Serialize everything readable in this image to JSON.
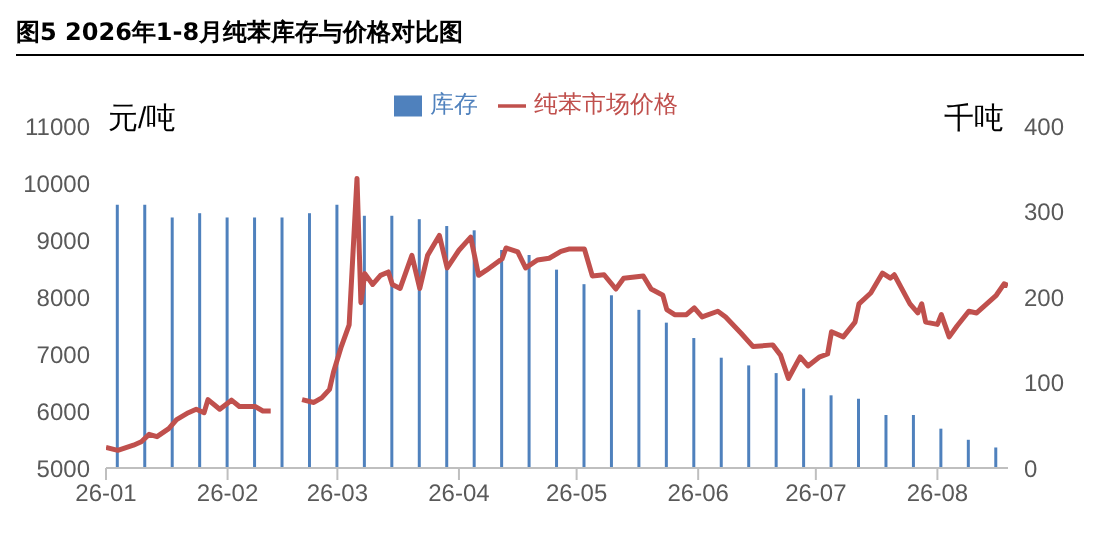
{
  "chart_data": {
    "type": "line",
    "title": "图5 2026年1-8月纯苯库存与价格对比图",
    "ylabel": "元/吨",
    "y2label": "千吨",
    "legend": "top",
    "grid": false,
    "marker": "none",
    "xlim": [
      "2026-01-01",
      "2026-08-19"
    ],
    "xticks": [
      {
        "value": "2026-01",
        "label": "26-01"
      },
      {
        "value": "2026-02",
        "label": "26-02"
      },
      {
        "value": "2026-03",
        "label": "26-03"
      },
      {
        "value": "2026-04",
        "label": "26-04"
      },
      {
        "value": "2026-05",
        "label": "26-05"
      },
      {
        "value": "2026-06",
        "label": "26-06"
      },
      {
        "value": "2026-07",
        "label": "26-07"
      },
      {
        "value": "2026-08",
        "label": "26-08"
      }
    ],
    "ylim": [
      5000,
      11000
    ],
    "yticks": [
      5000,
      6000,
      7000,
      8000,
      9000,
      10000,
      11000
    ],
    "y2lim": [
      0,
      400
    ],
    "y2ticks": [
      0,
      100,
      200,
      300,
      400
    ],
    "series": [
      {
        "name": "库存",
        "type": "bar",
        "axis": "y2",
        "color": "#4f81bd",
        "x": [
          "2026-01-04",
          "2026-01-11",
          "2026-01-18",
          "2026-01-25",
          "2026-02-01",
          "2026-02-08",
          "2026-02-15",
          "2026-02-22",
          "2026-03-01",
          "2026-03-08",
          "2026-03-15",
          "2026-03-22",
          "2026-03-29",
          "2026-04-05",
          "2026-04-12",
          "2026-04-19",
          "2026-04-26",
          "2026-05-03",
          "2026-05-10",
          "2026-05-17",
          "2026-05-24",
          "2026-05-31",
          "2026-06-07",
          "2026-06-14",
          "2026-06-21",
          "2026-06-28",
          "2026-07-05",
          "2026-07-12",
          "2026-07-19",
          "2026-07-26",
          "2026-08-02",
          "2026-08-09",
          "2026-08-16"
        ],
        "values": [
          308,
          308,
          293,
          298,
          293,
          293,
          293,
          298,
          308,
          295,
          295,
          291,
          283,
          278,
          255,
          249,
          232,
          215,
          202,
          185,
          170,
          152,
          129,
          120,
          111,
          93,
          85,
          81,
          62,
          62,
          46,
          33,
          24
        ]
      },
      {
        "name": "纯苯市场价格",
        "color": "#c0504d",
        "line_style": "solid",
        "x": [
          "2026-01-01",
          "2026-01-04",
          "2026-01-08",
          "2026-01-10",
          "2026-01-12",
          "2026-01-14",
          "2026-01-17",
          "2026-01-19",
          "2026-01-22",
          "2026-01-24",
          "2026-01-26",
          "2026-01-27",
          "2026-01-30",
          "2026-02-02",
          "2026-02-04",
          "2026-02-08",
          "2026-02-10",
          "2026-02-12",
          "2026-02-16",
          "2026-02-20",
          "2026-02-23",
          "2026-02-25",
          "2026-02-27",
          "2026-02-28",
          "2026-03-02",
          "2026-03-04",
          "2026-03-06",
          "2026-03-07",
          "2026-03-08",
          "2026-03-10",
          "2026-03-12",
          "2026-03-14",
          "2026-03-15",
          "2026-03-17",
          "2026-03-20",
          "2026-03-22",
          "2026-03-24",
          "2026-03-27",
          "2026-03-29",
          "2026-04-01",
          "2026-04-04",
          "2026-04-06",
          "2026-04-08",
          "2026-04-12",
          "2026-04-13",
          "2026-04-16",
          "2026-04-18",
          "2026-04-21",
          "2026-04-24",
          "2026-04-27",
          "2026-04-29",
          "2026-05-03",
          "2026-05-05",
          "2026-05-08",
          "2026-05-11",
          "2026-05-13",
          "2026-05-18",
          "2026-05-20",
          "2026-05-23",
          "2026-05-24",
          "2026-05-26",
          "2026-05-29",
          "2026-05-31",
          "2026-06-02",
          "2026-06-06",
          "2026-06-08",
          "2026-06-12",
          "2026-06-15",
          "2026-06-20",
          "2026-06-22",
          "2026-06-24",
          "2026-06-27",
          "2026-06-29",
          "2026-07-02",
          "2026-07-04",
          "2026-07-05",
          "2026-07-08",
          "2026-07-11",
          "2026-07-12",
          "2026-07-15",
          "2026-07-18",
          "2026-07-20",
          "2026-07-21",
          "2026-07-25",
          "2026-07-27",
          "2026-07-28",
          "2026-07-29",
          "2026-08-01",
          "2026-08-02",
          "2026-08-04",
          "2026-08-06",
          "2026-08-09",
          "2026-08-11",
          "2026-08-16",
          "2026-08-18",
          "2026-08-19"
        ],
        "values": [
          5360,
          5310,
          5400,
          5460,
          5590,
          5550,
          5690,
          5850,
          5970,
          6030,
          5970,
          6200,
          6030,
          6190,
          6080,
          6080,
          6000,
          6000,
          null,
          6200,
          6150,
          6230,
          6380,
          6680,
          7130,
          7510,
          10080,
          7900,
          8410,
          8220,
          8380,
          8440,
          8220,
          8150,
          8730,
          8150,
          8730,
          9080,
          8510,
          8820,
          9050,
          8380,
          8470,
          8670,
          8860,
          8790,
          8510,
          8650,
          8680,
          8800,
          8840,
          8840,
          8370,
          8390,
          8140,
          8330,
          8370,
          8140,
          8030,
          7780,
          7690,
          7690,
          7810,
          7650,
          7750,
          7650,
          7360,
          7130,
          7160,
          6980,
          6570,
          6950,
          6790,
          6950,
          7000,
          7390,
          7300,
          7560,
          7880,
          8070,
          8420,
          8330,
          8390,
          7880,
          7720,
          7880,
          7560,
          7520,
          7690,
          7300,
          7490,
          7750,
          7720,
          8030,
          8230,
          8200
        ]
      }
    ]
  }
}
